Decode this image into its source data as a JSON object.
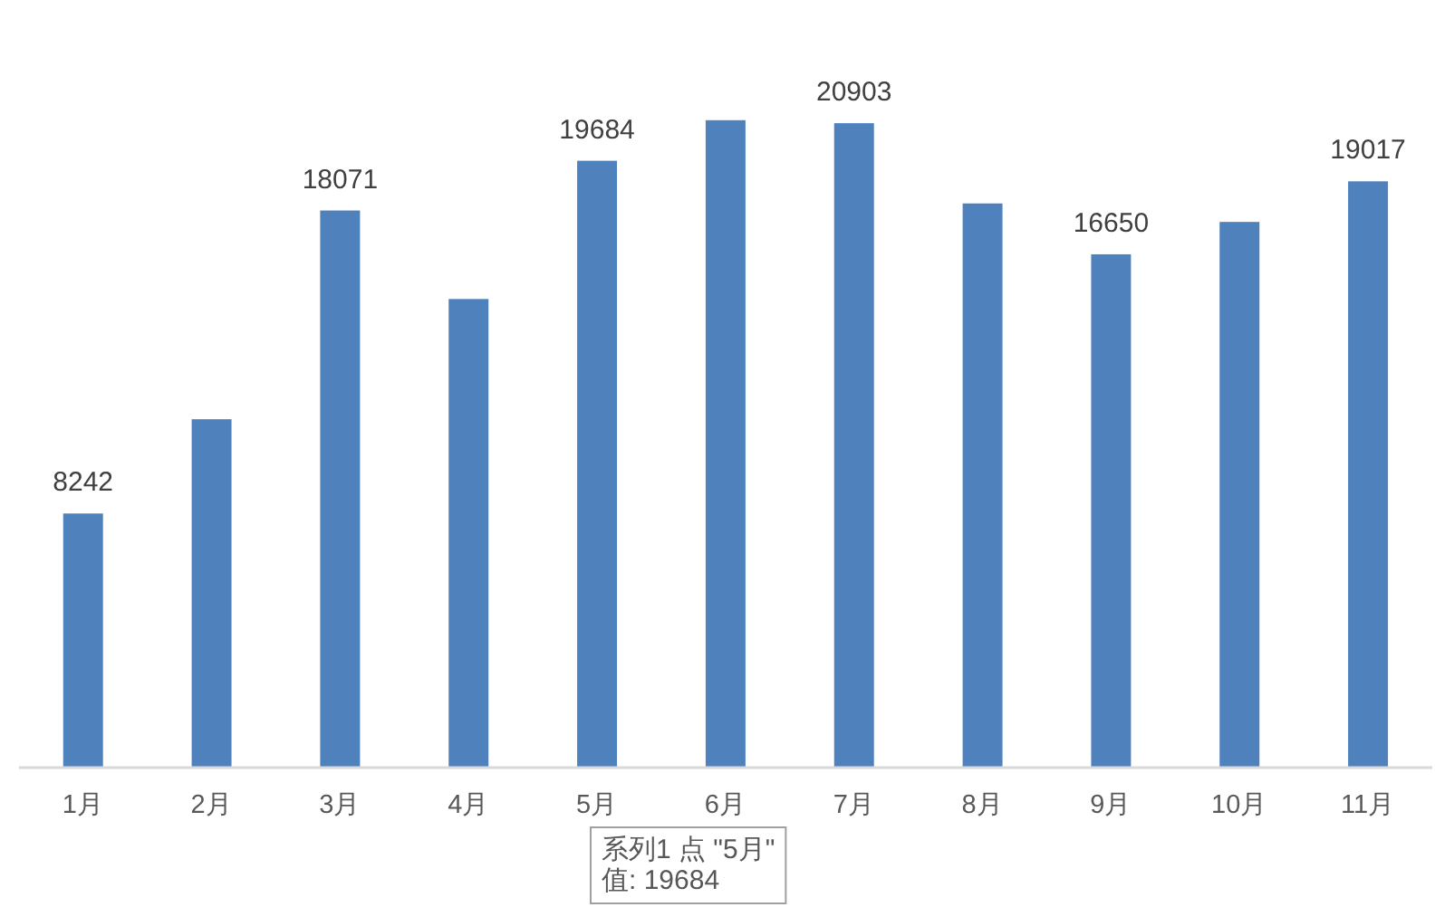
{
  "chart_data": {
    "type": "bar",
    "categories": [
      "1月",
      "2月",
      "3月",
      "4月",
      "5月",
      "6月",
      "7月",
      "8月",
      "9月",
      "10月",
      "11月"
    ],
    "values": [
      8242,
      11300,
      18071,
      15200,
      19684,
      21000,
      20903,
      18300,
      16650,
      17700,
      19017
    ],
    "value_labels": [
      "8242",
      null,
      "18071",
      null,
      "19684",
      null,
      "20903",
      null,
      "16650",
      null,
      "19017"
    ],
    "color": "#4f81bd",
    "annotations": [
      "系列1 点 \"5月\"\n值: 19684"
    ]
  }
}
